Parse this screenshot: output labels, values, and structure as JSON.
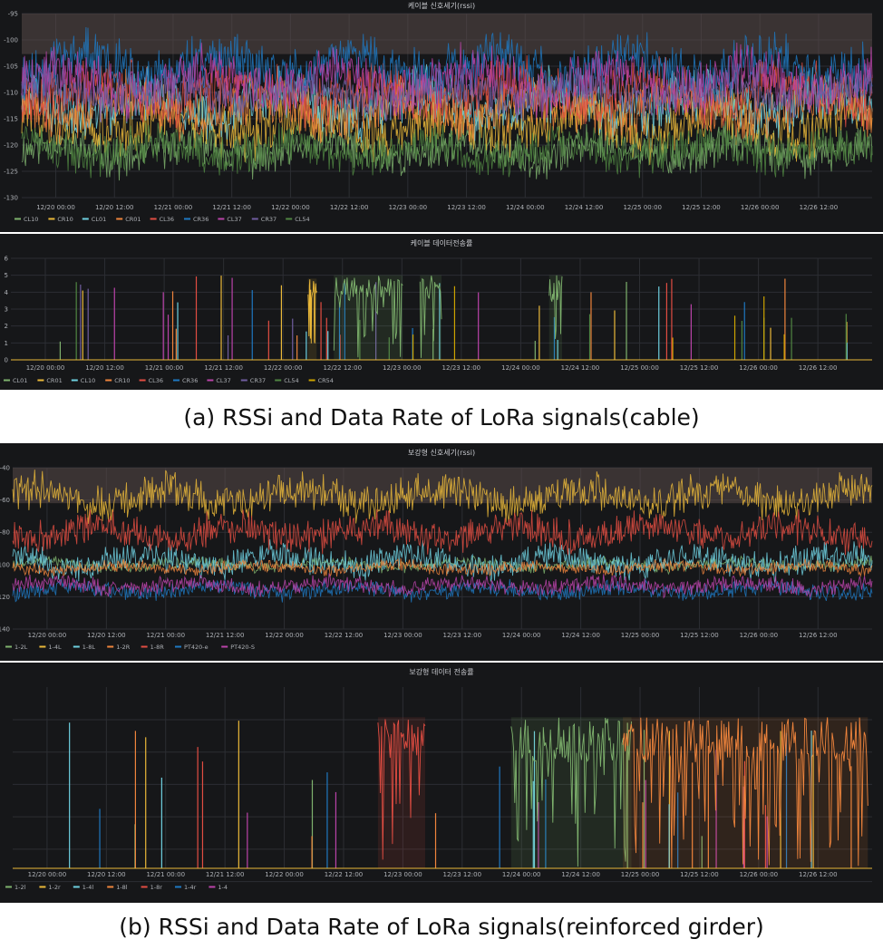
{
  "captions": {
    "a": "(a) RSSi and Data Rate of LoRa signals(cable)",
    "b": "(b) RSSi and Data Rate of LoRa signals(reinforced girder)"
  },
  "theme": {
    "background": "#161719",
    "grid": "#2c2e33",
    "text": "#aeb1b6"
  },
  "chart_data": [
    {
      "id": "cable-rssi",
      "type": "line",
      "title": "케이블 신호세기(rssi)",
      "ylim": [
        -130,
        -95
      ],
      "yticks": [
        -95,
        -100,
        -105,
        -110,
        -115,
        -120,
        -125,
        -130
      ],
      "xticks": [
        "12/20 00:00",
        "12/20 12:00",
        "12/21 00:00",
        "12/21 12:00",
        "12/22 00:00",
        "12/22 12:00",
        "12/23 00:00",
        "12/23 12:00",
        "12/24 00:00",
        "12/24 12:00",
        "12/25 00:00",
        "12/25 12:00",
        "12/26 00:00",
        "12/26 12:00"
      ],
      "legend_position": "bottom-left",
      "series": [
        {
          "name": "CL10",
          "color": "#7eb26d",
          "mean": -121,
          "spread": 3
        },
        {
          "name": "CR10",
          "color": "#eab839",
          "mean": -116,
          "spread": 4
        },
        {
          "name": "CL01",
          "color": "#6ed0e0",
          "mean": -112,
          "spread": 4
        },
        {
          "name": "CR01",
          "color": "#ef843c",
          "mean": -113,
          "spread": 4
        },
        {
          "name": "CL36",
          "color": "#e24d42",
          "mean": -110,
          "spread": 4
        },
        {
          "name": "CR36",
          "color": "#1f78c1",
          "mean": -105,
          "spread": 4
        },
        {
          "name": "CL37",
          "color": "#ba43a9",
          "mean": -108,
          "spread": 4
        },
        {
          "name": "CR37",
          "color": "#705da0",
          "mean": -110,
          "spread": 3
        },
        {
          "name": "CL54",
          "color": "#508642",
          "mean": -121,
          "spread": 3
        }
      ]
    },
    {
      "id": "cable-rate",
      "type": "line",
      "title": "케이블 데이터전송률",
      "ylim": [
        0,
        6
      ],
      "yticks": [
        6,
        5,
        4,
        3,
        2,
        1,
        0
      ],
      "xticks": [
        "12/20 00:00",
        "12/20 12:00",
        "12/21 00:00",
        "12/21 12:00",
        "12/22 00:00",
        "12/22 12:00",
        "12/23 00:00",
        "12/23 12:00",
        "12/24 00:00",
        "12/24 12:00",
        "12/25 00:00",
        "12/25 12:00",
        "12/26 00:00",
        "12/26 12:00"
      ],
      "legend_position": "bottom-left",
      "series": [
        {
          "name": "CL01",
          "color": "#7eb26d"
        },
        {
          "name": "CR01",
          "color": "#eab839"
        },
        {
          "name": "CL10",
          "color": "#6ed0e0"
        },
        {
          "name": "CR10",
          "color": "#ef843c"
        },
        {
          "name": "CL36",
          "color": "#e24d42"
        },
        {
          "name": "CR36",
          "color": "#1f78c1"
        },
        {
          "name": "CL37",
          "color": "#ba43a9"
        },
        {
          "name": "CR37",
          "color": "#705da0"
        },
        {
          "name": "CL54",
          "color": "#508642"
        },
        {
          "name": "CR54",
          "color": "#cca300"
        }
      ],
      "bursts": [
        {
          "series": 1,
          "start": 0.345,
          "end": 0.355,
          "max": 4.8
        },
        {
          "series": 0,
          "start": 0.375,
          "end": 0.455,
          "max": 5
        },
        {
          "series": 0,
          "start": 0.475,
          "end": 0.5,
          "max": 5
        },
        {
          "series": 0,
          "start": 0.625,
          "end": 0.64,
          "max": 5
        }
      ]
    },
    {
      "id": "girder-rssi",
      "type": "line",
      "title": "보강형 신호세기(rssi)",
      "ylim": [
        -140,
        -40
      ],
      "yticks": [
        -40,
        -60,
        -80,
        -100,
        -120,
        -140
      ],
      "xticks": [
        "12/20 00:00",
        "12/20 12:00",
        "12/21 00:00",
        "12/21 12:00",
        "12/22 00:00",
        "12/22 12:00",
        "12/23 00:00",
        "12/23 12:00",
        "12/24 00:00",
        "12/24 12:00",
        "12/25 00:00",
        "12/25 12:00",
        "12/26 00:00",
        "12/26 12:00"
      ],
      "legend_position": "bottom-left",
      "series": [
        {
          "name": "1-2L",
          "color": "#7eb26d",
          "mean": -100,
          "spread": 3
        },
        {
          "name": "1-4L",
          "color": "#eab839",
          "mean": -58,
          "spread": 9
        },
        {
          "name": "1-8L",
          "color": "#6ed0e0",
          "mean": -98,
          "spread": 7
        },
        {
          "name": "1-2R",
          "color": "#ef843c",
          "mean": -102,
          "spread": 3
        },
        {
          "name": "1-8R",
          "color": "#e24d42",
          "mean": -80,
          "spread": 8
        },
        {
          "name": "PT420-e",
          "color": "#1f78c1",
          "mean": -116,
          "spread": 4
        },
        {
          "name": "PT420-S",
          "color": "#ba43a9",
          "mean": -113,
          "spread": 4
        }
      ]
    },
    {
      "id": "girder-rate",
      "type": "line",
      "title": "보강형 데이터 전송률",
      "ylim": [
        0,
        6
      ],
      "xticks": [
        "12/20 00:00",
        "12/20 12:00",
        "12/21 00:00",
        "12/21 12:00",
        "12/22 00:00",
        "12/22 12:00",
        "12/23 00:00",
        "12/23 12:00",
        "12/24 00:00",
        "12/24 12:00",
        "12/25 00:00",
        "12/25 12:00",
        "12/26 00:00",
        "12/26 12:00"
      ],
      "legend_position": "bottom-left",
      "series": [
        {
          "name": "1-2l",
          "color": "#7eb26d"
        },
        {
          "name": "1-2r",
          "color": "#eab839"
        },
        {
          "name": "1-4l",
          "color": "#6ed0e0"
        },
        {
          "name": "1-8l",
          "color": "#ef843c"
        },
        {
          "name": "1-8r",
          "color": "#e24d42"
        },
        {
          "name": "1-4r",
          "color": "#1f78c1"
        },
        {
          "name": "1-4",
          "color": "#ba43a9"
        }
      ],
      "bursts": [
        {
          "series": 4,
          "start": 0.425,
          "end": 0.48,
          "max": 5
        },
        {
          "series": 0,
          "start": 0.58,
          "end": 0.72,
          "max": 5
        },
        {
          "series": 3,
          "start": 0.71,
          "end": 0.995,
          "max": 5
        }
      ]
    }
  ]
}
